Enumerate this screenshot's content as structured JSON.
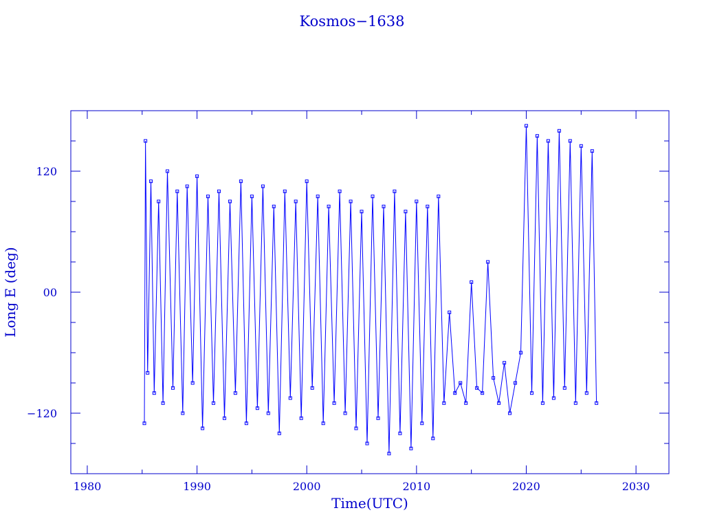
{
  "chart_data": {
    "type": "line",
    "title": "Kosmos−1638",
    "xlabel": "Time(UTC)",
    "ylabel": "Long E (deg)",
    "xlim": [
      1978.5,
      2033
    ],
    "ylim": [
      -180,
      180
    ],
    "x_ticks": [
      1980,
      1990,
      2000,
      2010,
      2020,
      2030
    ],
    "x_tick_labels": [
      "1980",
      "1990",
      "2000",
      "2010",
      "2020",
      "2030"
    ],
    "y_ticks": [
      120,
      0,
      -120
    ],
    "y_tick_labels": [
      "120",
      "00",
      "−120"
    ],
    "color": "#0000ff",
    "marker": "square",
    "grid": false,
    "series": [
      {
        "x": [
          1985.2,
          1985.3,
          1985.5,
          1985.8,
          1986.1,
          1986.5,
          1986.9,
          1987.3,
          1987.8,
          1988.2,
          1988.7,
          1989.1,
          1989.6,
          1990.0,
          1990.5,
          1991.0,
          1991.5,
          1992.0,
          1992.5,
          1993.0,
          1993.5,
          1994.0,
          1994.5,
          1995.0,
          1995.5,
          1996.0,
          1996.5,
          1997.0,
          1997.5,
          1998.0,
          1998.5,
          1999.0,
          1999.5,
          2000.0,
          2000.5,
          2001.0,
          2001.5,
          2002.0,
          2002.5,
          2003.0,
          2003.5,
          2004.0,
          2004.5,
          2005.0,
          2005.5,
          2006.0,
          2006.5,
          2007.0,
          2007.5,
          2008.0,
          2008.5,
          2009.0,
          2009.5,
          2010.0,
          2010.5,
          2011.0,
          2011.5,
          2012.0,
          2012.5,
          2013.0,
          2013.5,
          2014.0,
          2014.5,
          2015.0,
          2015.5,
          2016.0,
          2016.5,
          2017.0,
          2017.5,
          2018.0,
          2018.5,
          2019.0,
          2019.5,
          2020.0,
          2020.5,
          2021.0,
          2021.5,
          2022.0,
          2022.5,
          2023.0,
          2023.5,
          2024.0,
          2024.5,
          2025.0,
          2025.5,
          2026.0,
          2026.4
        ],
        "y": [
          -130,
          150,
          -80,
          110,
          -100,
          90,
          -110,
          120,
          -95,
          100,
          -120,
          105,
          -90,
          115,
          -135,
          95,
          -110,
          100,
          -125,
          90,
          -100,
          110,
          -130,
          95,
          -115,
          105,
          -120,
          85,
          -140,
          100,
          -105,
          90,
          -125,
          110,
          -95,
          95,
          -130,
          85,
          -110,
          100,
          -120,
          90,
          -135,
          80,
          -150,
          95,
          -125,
          85,
          -160,
          100,
          -140,
          80,
          -155,
          90,
          -130,
          85,
          -145,
          95,
          -110,
          -20,
          -100,
          -90,
          -110,
          10,
          -95,
          -100,
          30,
          -85,
          -110,
          -70,
          -120,
          -90,
          -60,
          165,
          -100,
          155,
          -110,
          150,
          -105,
          160,
          -95,
          150,
          -110,
          145,
          -100,
          140,
          -110
        ]
      }
    ]
  }
}
